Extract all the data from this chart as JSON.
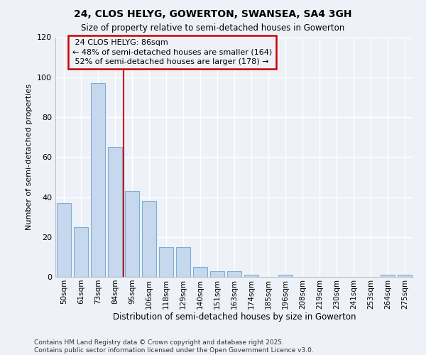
{
  "title1": "24, CLOS HELYG, GOWERTON, SWANSEA, SA4 3GH",
  "title2": "Size of property relative to semi-detached houses in Gowerton",
  "xlabel": "Distribution of semi-detached houses by size in Gowerton",
  "ylabel": "Number of semi-detached properties",
  "categories": [
    "50sqm",
    "61sqm",
    "73sqm",
    "84sqm",
    "95sqm",
    "106sqm",
    "118sqm",
    "129sqm",
    "140sqm",
    "151sqm",
    "163sqm",
    "174sqm",
    "185sqm",
    "196sqm",
    "208sqm",
    "219sqm",
    "230sqm",
    "241sqm",
    "253sqm",
    "264sqm",
    "275sqm"
  ],
  "values": [
    37,
    25,
    97,
    65,
    43,
    38,
    15,
    15,
    5,
    3,
    3,
    1,
    0,
    1,
    0,
    0,
    0,
    0,
    0,
    1,
    1
  ],
  "bar_color": "#c5d8ed",
  "bar_edge_color": "#7bafd4",
  "property_label": "24 CLOS HELYG: 86sqm",
  "pct_smaller": 48,
  "n_smaller": 164,
  "pct_larger": 52,
  "n_larger": 178,
  "vline_color": "#cc0000",
  "annotation_box_color": "#cc0000",
  "ylim": [
    0,
    120
  ],
  "yticks": [
    0,
    20,
    40,
    60,
    80,
    100,
    120
  ],
  "footer1": "Contains HM Land Registry data © Crown copyright and database right 2025.",
  "footer2": "Contains public sector information licensed under the Open Government Licence v3.0.",
  "background_color": "#eef2f8",
  "grid_color": "#ffffff"
}
